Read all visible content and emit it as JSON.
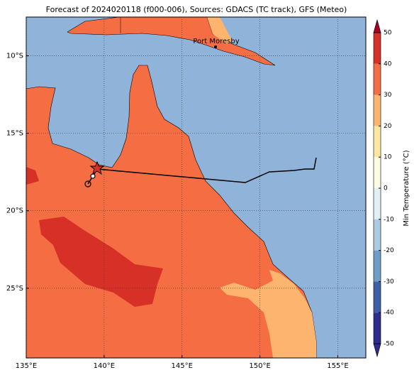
{
  "title": "Forecast of 2024020118 (f000-006), Sources: GDACS (TC track), GFS (Meteo)",
  "map": {
    "xlim": [
      135,
      156.8
    ],
    "ylim": [
      -29.5,
      -7.5
    ],
    "xticks": [
      {
        "value": 135,
        "label": "135°E"
      },
      {
        "value": 140,
        "label": "140°E"
      },
      {
        "value": 145,
        "label": "145°E"
      },
      {
        "value": 150,
        "label": "150°E"
      },
      {
        "value": 155,
        "label": "155°E"
      }
    ],
    "yticks": [
      {
        "value": -10,
        "label": "10°S"
      },
      {
        "value": -15,
        "label": "15°S"
      },
      {
        "value": -20,
        "label": "20°S"
      },
      {
        "value": -25,
        "label": "25°S"
      }
    ],
    "grid": true,
    "place": "Port Moresby"
  },
  "colorbar": {
    "label": "Min Temperature (°C)",
    "lim": [
      -50,
      50
    ],
    "ticks": [
      -50,
      -40,
      -30,
      -20,
      -10,
      0,
      10,
      20,
      30,
      40,
      50
    ],
    "colors": [
      "#2c2d8c",
      "#3d5fa8",
      "#6f9dc9",
      "#a9cce3",
      "#e0f1f6",
      "#fbfce4",
      "#fee7a3",
      "#fdb46e",
      "#f46d43",
      "#d73027",
      "#a50026"
    ]
  }
}
